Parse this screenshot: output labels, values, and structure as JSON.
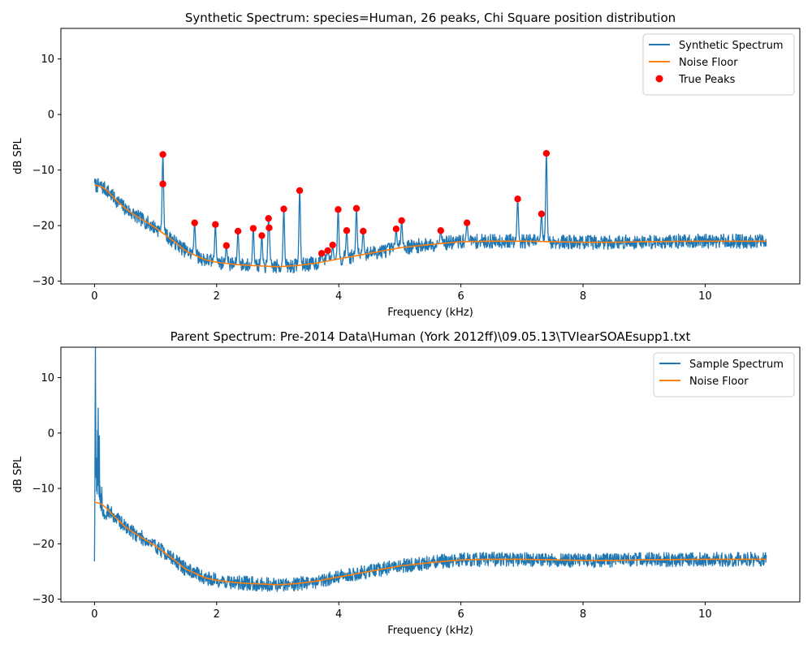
{
  "chart_data": [
    {
      "type": "line",
      "title": "Synthetic Spectrum: species=Human, 26 peaks, Chi Square position distribution",
      "xlabel": "Frequency (kHz)",
      "ylabel": "dB SPL",
      "xlim": [
        -0.55,
        11.55
      ],
      "ylim": [
        -30.5,
        15.5
      ],
      "xticks": [
        0,
        2,
        4,
        6,
        8,
        10
      ],
      "yticks": [
        -30,
        -20,
        -10,
        0,
        10
      ],
      "grid": false,
      "legend_position": "top-right",
      "legend": [
        "Synthetic Spectrum",
        "Noise Floor",
        "True Peaks"
      ],
      "colors": {
        "spectrum": "#1f77b4",
        "noise_floor": "#ff7f0e",
        "peaks": "#ff0000"
      },
      "series": [
        {
          "name": "Synthetic Spectrum",
          "kind": "noisy-line",
          "baseline": "noise_floor",
          "noise_db": 1.3,
          "noise_seed": 7,
          "start_db": -12.3,
          "x_range": [
            0,
            11
          ]
        },
        {
          "name": "Noise Floor",
          "x": [
            0,
            0.1,
            0.2,
            0.3,
            0.5,
            0.7,
            1.0,
            1.2,
            1.5,
            1.8,
            2.0,
            2.3,
            2.6,
            3.0,
            3.3,
            3.6,
            4.0,
            4.5,
            5.0,
            5.5,
            6.0,
            6.5,
            7.0,
            7.5,
            8.0,
            8.5,
            9.0,
            10.0,
            11.0
          ],
          "y": [
            -12.7,
            -12.9,
            -13.6,
            -14.8,
            -16.9,
            -18.4,
            -20.4,
            -22.0,
            -24.6,
            -26.1,
            -26.6,
            -27.0,
            -27.2,
            -27.4,
            -27.2,
            -26.8,
            -26.0,
            -25.0,
            -24.0,
            -23.4,
            -22.9,
            -22.8,
            -22.8,
            -22.9,
            -23.0,
            -23.0,
            -22.9,
            -22.8,
            -22.8
          ]
        },
        {
          "name": "True Peaks",
          "kind": "scatter",
          "x": [
            1.12,
            1.12,
            1.64,
            1.98,
            2.16,
            2.35,
            2.6,
            2.74,
            2.85,
            2.86,
            3.1,
            3.36,
            3.9,
            3.99,
            4.13,
            4.29,
            4.4,
            4.94,
            5.03,
            5.67,
            6.1,
            6.93,
            7.32,
            7.4,
            3.72,
            3.82
          ],
          "y": [
            -7.2,
            -12.5,
            -19.5,
            -19.8,
            -23.6,
            -21.0,
            -20.5,
            -21.8,
            -18.7,
            -20.4,
            -17.0,
            -13.7,
            -23.5,
            -17.1,
            -20.9,
            -16.9,
            -21.0,
            -20.6,
            -19.1,
            -20.9,
            -19.5,
            -15.2,
            -17.9,
            -7.0,
            -25.0,
            -24.5
          ]
        }
      ]
    },
    {
      "type": "line",
      "title": "Parent Spectrum: Pre-2014 Data\\Human (York 2012ff)\\09.05.13\\TVIearSOAEsupp1.txt",
      "xlabel": "Frequency (kHz)",
      "ylabel": "dB SPL",
      "xlim": [
        -0.55,
        11.55
      ],
      "ylim": [
        -30.5,
        15.5
      ],
      "xticks": [
        0,
        2,
        4,
        6,
        8,
        10
      ],
      "yticks": [
        -30,
        -20,
        -10,
        0,
        10
      ],
      "grid": false,
      "legend_position": "top-right",
      "legend": [
        "Sample Spectrum",
        "Noise Floor"
      ],
      "colors": {
        "spectrum": "#1f77b4",
        "noise_floor": "#ff7f0e"
      },
      "series": [
        {
          "name": "Sample Spectrum",
          "kind": "noisy-line",
          "baseline": "noise_floor",
          "noise_db": 1.3,
          "noise_seed": 19,
          "x_range": [
            0,
            11
          ],
          "low_freq_trace": {
            "x": [
              0.0,
              0.005,
              0.01,
              0.015,
              0.02,
              0.025,
              0.03,
              0.035,
              0.04,
              0.045,
              0.05,
              0.055,
              0.06,
              0.065,
              0.07,
              0.075,
              0.08,
              0.085,
              0.09,
              0.095,
              0.1,
              0.11,
              0.12,
              0.13,
              0.14,
              0.15,
              0.16,
              0.17,
              0.18,
              0.19,
              0.2
            ],
            "y": [
              -23.2,
              -14.0,
              2.0,
              16.5,
              3.0,
              -8.0,
              -4.5,
              -10.5,
              -7.0,
              -11.0,
              0.5,
              -9.5,
              4.5,
              -8.0,
              -6.0,
              -11.5,
              -0.5,
              -12.0,
              -9.5,
              -13.5,
              -11.0,
              -14.0,
              -9.8,
              -14.5,
              -15.0,
              -13.8,
              -15.5,
              -14.8,
              -15.0,
              -15.6,
              -15.2
            ]
          }
        },
        {
          "name": "Noise Floor",
          "x": [
            0,
            0.1,
            0.2,
            0.3,
            0.5,
            0.7,
            1.0,
            1.2,
            1.5,
            1.8,
            2.0,
            2.3,
            2.6,
            3.0,
            3.3,
            3.6,
            4.0,
            4.5,
            5.0,
            5.5,
            6.0,
            6.5,
            7.0,
            7.5,
            8.0,
            8.5,
            9.0,
            10.0,
            11.0
          ],
          "y": [
            -12.5,
            -12.7,
            -13.6,
            -14.8,
            -16.9,
            -18.4,
            -20.4,
            -22.0,
            -24.6,
            -26.1,
            -26.6,
            -27.0,
            -27.2,
            -27.4,
            -27.2,
            -26.8,
            -26.0,
            -25.0,
            -24.0,
            -23.4,
            -22.9,
            -22.8,
            -22.8,
            -22.9,
            -23.0,
            -23.0,
            -22.9,
            -22.8,
            -22.8
          ]
        }
      ]
    }
  ]
}
